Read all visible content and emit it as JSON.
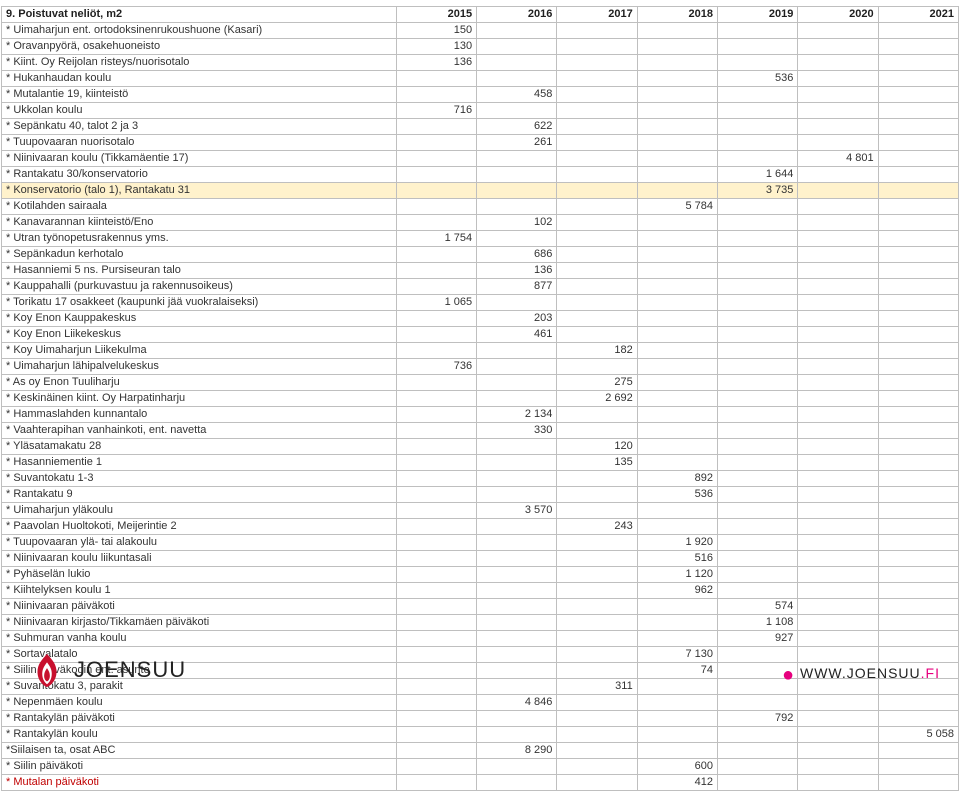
{
  "header": {
    "title": "9. Poistuvat neliöt, m2",
    "years": [
      "2015",
      "2016",
      "2017",
      "2018",
      "2019",
      "2020",
      "2021"
    ]
  },
  "rows": [
    {
      "label": "* Uimaharjun ent. ortodoksinenrukoushuone (Kasari)",
      "v": [
        "150",
        "",
        "",
        "",
        "",
        "",
        ""
      ]
    },
    {
      "label": "* Oravanpyörä, osakehuoneisto",
      "v": [
        "130",
        "",
        "",
        "",
        "",
        "",
        ""
      ]
    },
    {
      "label": "* Kiint. Oy Reijolan risteys/nuorisotalo",
      "v": [
        "136",
        "",
        "",
        "",
        "",
        "",
        ""
      ]
    },
    {
      "label": "* Hukanhaudan koulu",
      "v": [
        "",
        "",
        "",
        "",
        "536",
        "",
        ""
      ]
    },
    {
      "label": "* Mutalantie 19, kiinteistö",
      "v": [
        "",
        "458",
        "",
        "",
        "",
        "",
        ""
      ]
    },
    {
      "label": "* Ukkolan koulu",
      "v": [
        "716",
        "",
        "",
        "",
        "",
        "",
        ""
      ]
    },
    {
      "label": "* Sepänkatu 40, talot 2 ja 3",
      "v": [
        "",
        "622",
        "",
        "",
        "",
        "",
        ""
      ]
    },
    {
      "label": "* Tuupovaaran nuorisotalo",
      "v": [
        "",
        "261",
        "",
        "",
        "",
        "",
        ""
      ]
    },
    {
      "label": "* Niinivaaran koulu (Tikkamäentie 17)",
      "v": [
        "",
        "",
        "",
        "",
        "",
        "4 801",
        ""
      ]
    },
    {
      "label": "* Rantakatu 30/konservatorio",
      "v": [
        "",
        "",
        "",
        "",
        "1 644",
        "",
        ""
      ]
    },
    {
      "label": "* Konservatorio (talo 1), Rantakatu 31",
      "v": [
        "",
        "",
        "",
        "",
        "3 735",
        "",
        ""
      ],
      "hl": true
    },
    {
      "label": "* Kotilahden sairaala",
      "v": [
        "",
        "",
        "",
        "5 784",
        "",
        "",
        ""
      ]
    },
    {
      "label": "* Kanavarannan kiinteistö/Eno",
      "v": [
        "",
        "102",
        "",
        "",
        "",
        "",
        ""
      ]
    },
    {
      "label": "* Utran työnopetusrakennus yms.",
      "v": [
        "1 754",
        "",
        "",
        "",
        "",
        "",
        ""
      ]
    },
    {
      "label": "* Sepänkadun kerhotalo",
      "v": [
        "",
        "686",
        "",
        "",
        "",
        "",
        ""
      ]
    },
    {
      "label": "* Hasanniemi 5 ns. Pursiseuran talo",
      "v": [
        "",
        "136",
        "",
        "",
        "",
        "",
        ""
      ]
    },
    {
      "label": "* Kauppahalli (purkuvastuu ja rakennusoikeus)",
      "v": [
        "",
        "877",
        "",
        "",
        "",
        "",
        ""
      ]
    },
    {
      "label": "* Torikatu 17 osakkeet (kaupunki jää vuokralaiseksi)",
      "v": [
        "1 065",
        "",
        "",
        "",
        "",
        "",
        ""
      ]
    },
    {
      "label": "* Koy Enon Kauppakeskus",
      "v": [
        "",
        "203",
        "",
        "",
        "",
        "",
        ""
      ]
    },
    {
      "label": "* Koy Enon Liikekeskus",
      "v": [
        "",
        "461",
        "",
        "",
        "",
        "",
        ""
      ]
    },
    {
      "label": "* Koy Uimaharjun Liikekulma",
      "v": [
        "",
        "",
        "182",
        "",
        "",
        "",
        ""
      ]
    },
    {
      "label": "* Uimaharjun lähipalvelukeskus",
      "v": [
        "736",
        "",
        "",
        "",
        "",
        "",
        ""
      ]
    },
    {
      "label": "* As oy Enon Tuuliharju",
      "v": [
        "",
        "",
        "275",
        "",
        "",
        "",
        ""
      ]
    },
    {
      "label": "* Keskinäinen kiint. Oy Harpatinharju",
      "v": [
        "",
        "",
        "2 692",
        "",
        "",
        "",
        ""
      ]
    },
    {
      "label": "* Hammaslahden kunnantalo",
      "v": [
        "",
        "2 134",
        "",
        "",
        "",
        "",
        ""
      ]
    },
    {
      "label": "* Vaahterapihan vanhainkoti, ent. navetta",
      "v": [
        "",
        "330",
        "",
        "",
        "",
        "",
        ""
      ]
    },
    {
      "label": "* Yläsatamakatu 28",
      "v": [
        "",
        "",
        "120",
        "",
        "",
        "",
        ""
      ]
    },
    {
      "label": "* Hasanniementie 1",
      "v": [
        "",
        "",
        "135",
        "",
        "",
        "",
        ""
      ]
    },
    {
      "label": "* Suvantokatu 1-3",
      "v": [
        "",
        "",
        "",
        "892",
        "",
        "",
        ""
      ]
    },
    {
      "label": "* Rantakatu 9",
      "v": [
        "",
        "",
        "",
        "536",
        "",
        "",
        ""
      ]
    },
    {
      "label": "* Uimaharjun yläkoulu",
      "v": [
        "",
        "3 570",
        "",
        "",
        "",
        "",
        ""
      ]
    },
    {
      "label": "* Paavolan Huoltokoti, Meijerintie 2",
      "v": [
        "",
        "",
        "243",
        "",
        "",
        "",
        ""
      ]
    },
    {
      "label": "* Tuupovaaran ylä- tai alakoulu",
      "v": [
        "",
        "",
        "",
        "1 920",
        "",
        "",
        ""
      ]
    },
    {
      "label": "* Niinivaaran koulu liikuntasali",
      "v": [
        "",
        "",
        "",
        "516",
        "",
        "",
        ""
      ]
    },
    {
      "label": "* Pyhäselän lukio",
      "v": [
        "",
        "",
        "",
        "1 120",
        "",
        "",
        ""
      ]
    },
    {
      "label": "* Kiihtelyksen koulu 1",
      "v": [
        "",
        "",
        "",
        "962",
        "",
        "",
        ""
      ]
    },
    {
      "label": "* Niinivaaran päiväkoti",
      "v": [
        "",
        "",
        "",
        "",
        "574",
        "",
        ""
      ]
    },
    {
      "label": "* Niinivaaran kirjasto/Tikkamäen päiväkoti",
      "v": [
        "",
        "",
        "",
        "",
        "1 108",
        "",
        ""
      ]
    },
    {
      "label": "* Suhmuran vanha koulu",
      "v": [
        "",
        "",
        "",
        "",
        "927",
        "",
        ""
      ]
    },
    {
      "label": "* Sortavalatalo",
      "v": [
        "",
        "",
        "",
        "7 130",
        "",
        "",
        ""
      ]
    },
    {
      "label": "* Siilin päiväkodin ent. asunto",
      "v": [
        "",
        "",
        "",
        "74",
        "",
        "",
        ""
      ]
    },
    {
      "label": "* Suvantokatu 3, parakit",
      "v": [
        "",
        "",
        "311",
        "",
        "",
        "",
        ""
      ]
    },
    {
      "label": "* Nepenmäen koulu",
      "v": [
        "",
        "4 846",
        "",
        "",
        "",
        "",
        ""
      ]
    },
    {
      "label": "* Rantakylän päiväkoti",
      "v": [
        "",
        "",
        "",
        "",
        "792",
        "",
        ""
      ]
    },
    {
      "label": "* Rantakylän koulu",
      "v": [
        "",
        "",
        "",
        "",
        "",
        "",
        "5 058"
      ]
    },
    {
      "label": "*Siilaisen ta, osat ABC",
      "v": [
        "",
        "8 290",
        "",
        "",
        "",
        "",
        ""
      ]
    },
    {
      "label": "* Siilin päiväkoti",
      "v": [
        "",
        "",
        "",
        "600",
        "",
        "",
        ""
      ]
    },
    {
      "label": "* Mutalan päiväkoti",
      "v": [
        "",
        "",
        "",
        "412",
        "",
        "",
        ""
      ],
      "orange": true
    }
  ],
  "footer": {
    "brand": "JOENSUU",
    "url_prefix": "WWW.JOENSUU",
    "url_suffix": ".FI"
  }
}
